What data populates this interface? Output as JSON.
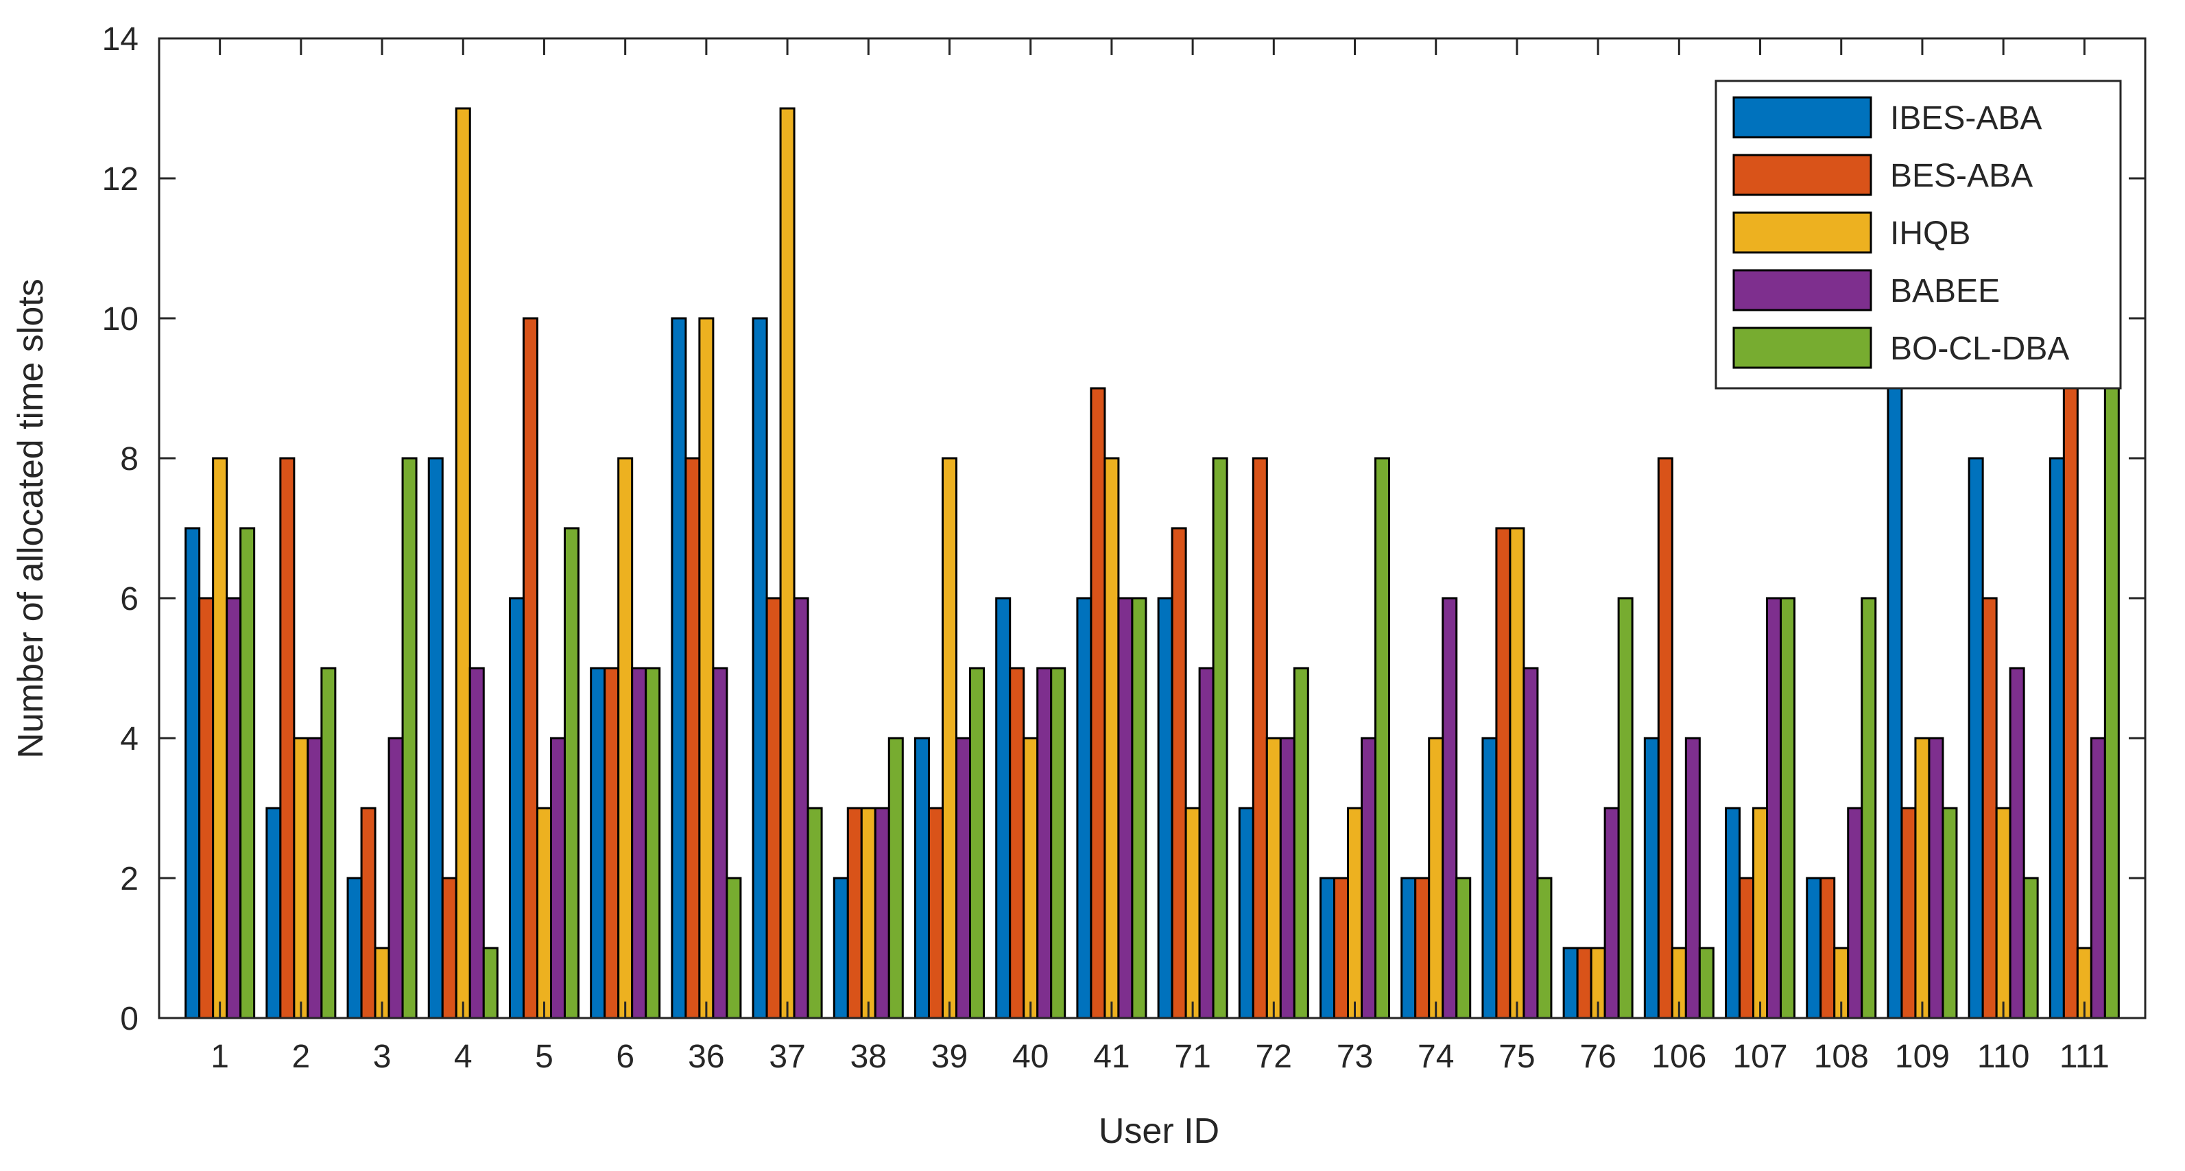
{
  "chart_data": {
    "type": "bar",
    "title": "",
    "xlabel": "User ID",
    "ylabel": "Number of allocated time slots",
    "ylim": [
      0,
      14
    ],
    "yticks": [
      "0",
      "2",
      "4",
      "6",
      "8",
      "10",
      "12",
      "14"
    ],
    "categories": [
      "1",
      "2",
      "3",
      "4",
      "5",
      "6",
      "36",
      "37",
      "38",
      "39",
      "40",
      "41",
      "71",
      "72",
      "73",
      "74",
      "75",
      "76",
      "106",
      "107",
      "108",
      "109",
      "110",
      "111"
    ],
    "grid": false,
    "legend_position": "top-right",
    "series": [
      {
        "name": "IBES-ABA",
        "color": "#0072BD",
        "values": [
          7,
          3,
          2,
          8,
          6,
          5,
          10,
          10,
          2,
          4,
          6,
          6,
          6,
          3,
          2,
          2,
          4,
          1,
          4,
          3,
          2,
          9,
          8,
          8
        ]
      },
      {
        "name": "BES-ABA",
        "color": "#D95319",
        "values": [
          6,
          8,
          3,
          2,
          10,
          5,
          8,
          6,
          3,
          3,
          5,
          9,
          7,
          8,
          2,
          2,
          7,
          1,
          8,
          2,
          2,
          3,
          6,
          9.3
        ]
      },
      {
        "name": "IHQB",
        "color": "#EDB120",
        "values": [
          8,
          4,
          1,
          13,
          3,
          8,
          10,
          13,
          3,
          8,
          4,
          8,
          3,
          4,
          3,
          4,
          7,
          1,
          1,
          3,
          1,
          4,
          3,
          1
        ]
      },
      {
        "name": "BABEE",
        "color": "#7E2F8E",
        "values": [
          6,
          4,
          4,
          5,
          4,
          5,
          5,
          6,
          3,
          4,
          5,
          6,
          5,
          4,
          4,
          6,
          5,
          3,
          4,
          6,
          3,
          4,
          5,
          4
        ]
      },
      {
        "name": "BO-CL-DBA",
        "color": "#77AC30",
        "values": [
          7,
          5,
          8,
          1,
          7,
          5,
          2,
          3,
          4,
          5,
          5,
          6,
          8,
          5,
          8,
          2,
          2,
          6,
          1,
          6,
          6,
          3,
          2,
          9
        ]
      }
    ]
  }
}
